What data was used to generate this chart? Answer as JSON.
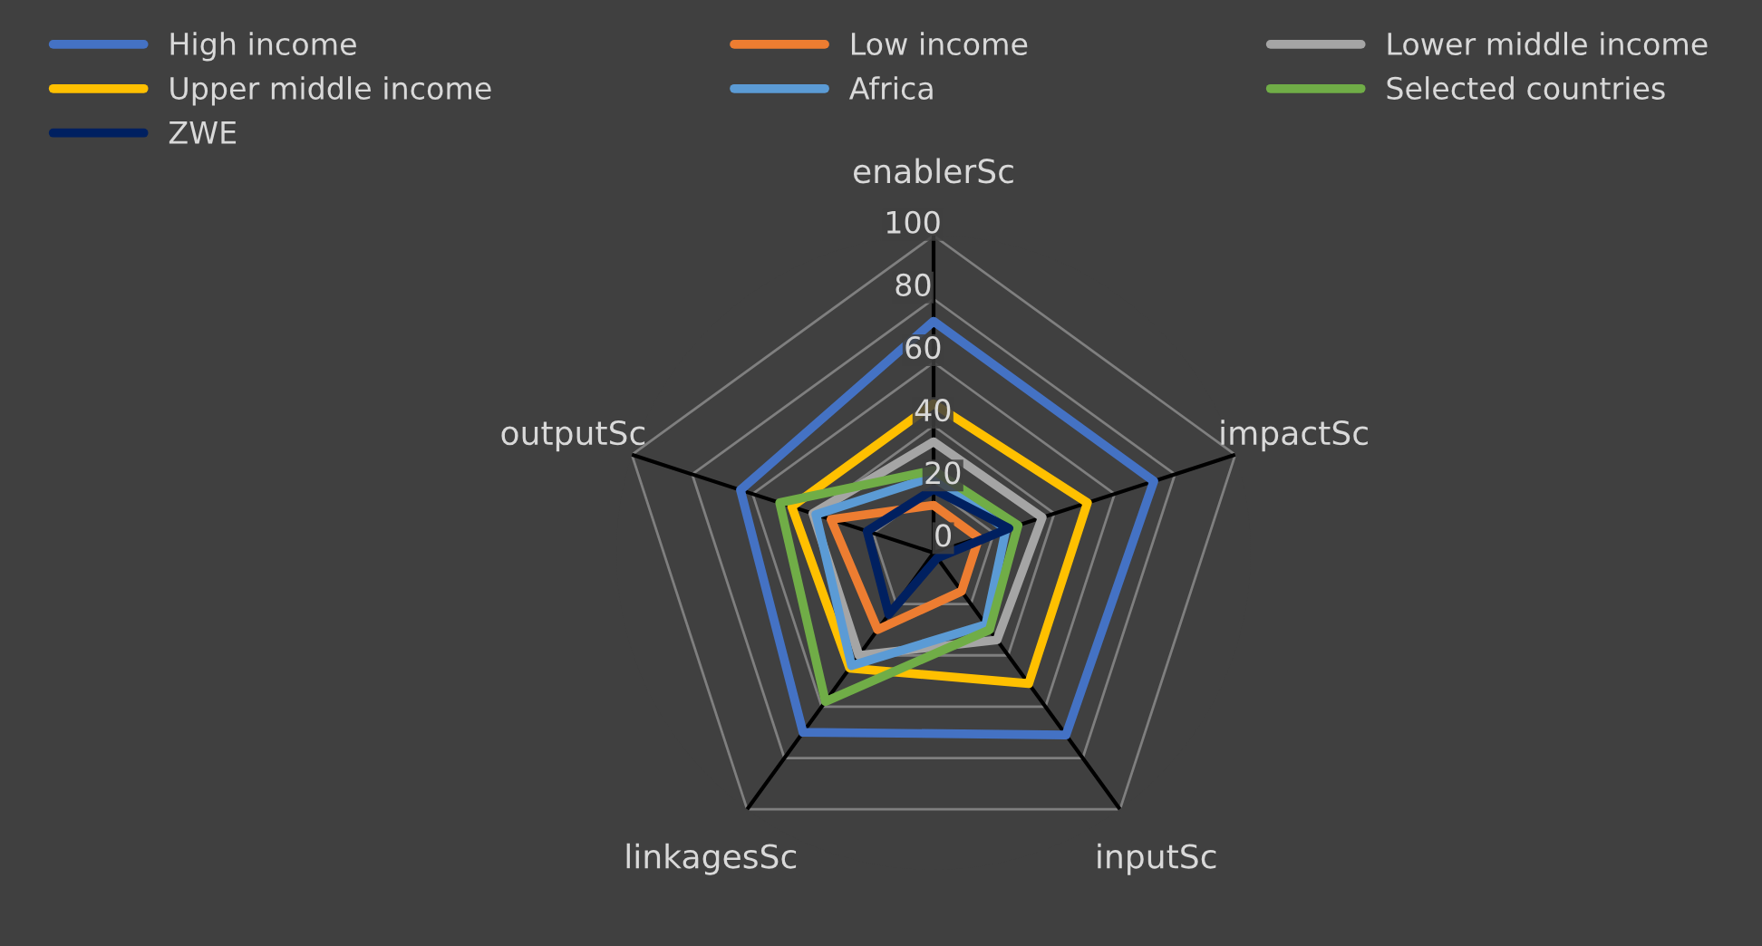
{
  "chart_data": {
    "type": "radar",
    "categories": [
      "enablerSc",
      "impactSc",
      "inputSc",
      "linkagesSc",
      "outputSc"
    ],
    "series": [
      {
        "name": "High income",
        "color": "#4472c4",
        "values": [
          73,
          73,
          71,
          70,
          64
        ]
      },
      {
        "name": "Low income",
        "color": "#ed7d31",
        "values": [
          15,
          15,
          15,
          30,
          34
        ]
      },
      {
        "name": "Lower middle income",
        "color": "#a5a5a5",
        "values": [
          35,
          36,
          34,
          40,
          40
        ]
      },
      {
        "name": "Upper middle income",
        "color": "#ffc000",
        "values": [
          47,
          51,
          51,
          45,
          47
        ]
      },
      {
        "name": "Africa",
        "color": "#5b9bd5",
        "values": [
          24,
          24,
          28,
          44,
          39
        ]
      },
      {
        "name": "Selected countries",
        "color": "#70ad47",
        "values": [
          26,
          28,
          30,
          58,
          51
        ]
      },
      {
        "name": "ZWE",
        "color": "#002060",
        "values": [
          20,
          25,
          2,
          24,
          22
        ]
      }
    ],
    "ylim": [
      0,
      100
    ],
    "yticks": [
      0,
      20,
      40,
      60,
      80,
      100
    ],
    "grid": true,
    "legend": "top"
  }
}
